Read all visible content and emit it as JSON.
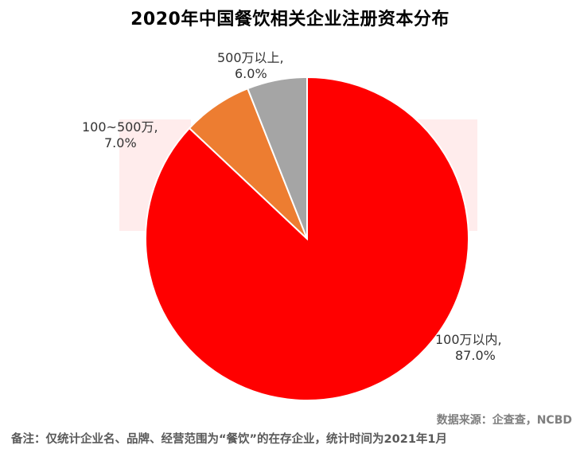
{
  "chart_data": {
    "type": "pie",
    "title": "2020年中国餐饮相关企业注册资本分布",
    "slices": [
      {
        "label_line1": "100万以内,",
        "label_line2": "87.0%",
        "label": "100万以内",
        "value": 87.0,
        "color": "#FF0000"
      },
      {
        "label_line1": "100~500万,",
        "label_line2": "7.0%",
        "label": "100~500万",
        "value": 7.0,
        "color": "#ED7D31"
      },
      {
        "label_line1": "500万以上,",
        "label_line2": "6.0%",
        "label": "500万以上",
        "value": 6.0,
        "color": "#A5A5A5"
      }
    ]
  },
  "footer": {
    "source": "数据来源：企查查，NCBD",
    "note": "备注：仅统计企业名、品牌、经营范围为“餐饮”的在存企业，统计时间为2021年1月"
  }
}
